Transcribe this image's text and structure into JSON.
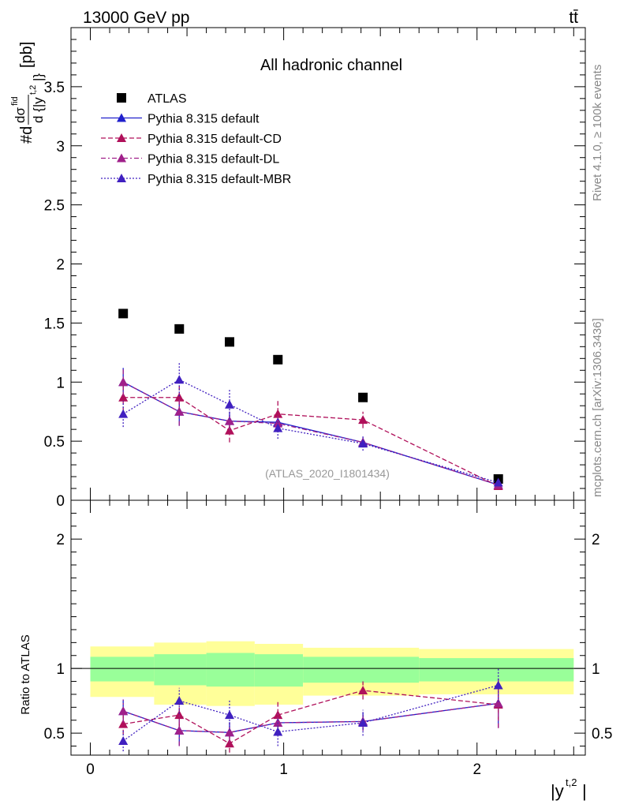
{
  "header": {
    "energy_label": "13000 GeV pp",
    "process_label": "tt̄"
  },
  "side": {
    "rivet_label": "Rivet 4.1.0, ≥ 100k events",
    "mcplots_label": "mcplots.cern.ch [arXiv:1306.3436]"
  },
  "chart_data": [
    {
      "type": "scatter",
      "panel": "main",
      "title": "All hadronic channel",
      "ylabel": "#d dσ^fid / d {|y^t,2|} [pb]",
      "xlabel": "|y^t,2|",
      "xlim": [
        -0.1,
        2.56
      ],
      "ylim": [
        0,
        4.0
      ],
      "yticks": [
        "0",
        "0.5",
        "1",
        "1.5",
        "2",
        "2.5",
        "3",
        "3.5"
      ],
      "analysis_label": "(ATLAS_2020_I1801434)",
      "legend_position": "top-left",
      "x": [
        0.17,
        0.46,
        0.72,
        0.97,
        1.41,
        2.11
      ],
      "series": [
        {
          "name": "ATLAS",
          "style": "data",
          "color": "#000000",
          "values": [
            1.58,
            1.45,
            1.34,
            1.19,
            0.87,
            0.18
          ]
        },
        {
          "name": "Pythia 8.315 default",
          "style": "solid",
          "color": "#2020cc",
          "values": [
            1.0,
            0.75,
            0.67,
            0.66,
            0.49,
            0.13
          ],
          "errors": [
            0.12,
            0.12,
            0.08,
            0.07,
            0.04,
            0.03
          ]
        },
        {
          "name": "Pythia 8.315 default-CD",
          "style": "dashed",
          "color": "#b0105a",
          "values": [
            0.87,
            0.87,
            0.59,
            0.73,
            0.68,
            0.12
          ],
          "errors": [
            0.12,
            0.12,
            0.1,
            0.11,
            0.07,
            0.03
          ]
        },
        {
          "name": "Pythia 8.315 default-DL",
          "style": "dashdot",
          "color": "#a0208a",
          "values": [
            1.0,
            0.75,
            0.67,
            0.65,
            0.49,
            0.13
          ],
          "errors": [
            0.12,
            0.12,
            0.08,
            0.07,
            0.04,
            0.03
          ]
        },
        {
          "name": "Pythia 8.315 default-MBR",
          "style": "dotted",
          "color": "#4020c0",
          "values": [
            0.73,
            1.02,
            0.81,
            0.61,
            0.48,
            0.15
          ],
          "errors": [
            0.11,
            0.14,
            0.13,
            0.09,
            0.06,
            0.03
          ]
        }
      ]
    },
    {
      "type": "scatter",
      "panel": "ratio",
      "ylabel": "Ratio to ATLAS",
      "xlabel": "|y^t,2|",
      "xlim": [
        -0.1,
        2.56
      ],
      "ylim": [
        0.33,
        2.3
      ],
      "yticks": [
        "0.5",
        "1",
        "2"
      ],
      "xticks": [
        "0",
        "1",
        "2"
      ],
      "bins": [
        0.0,
        0.33,
        0.6,
        0.85,
        1.1,
        1.7,
        2.5
      ],
      "band_inner": [
        [
          0.9,
          1.09
        ],
        [
          0.87,
          1.11
        ],
        [
          0.86,
          1.12
        ],
        [
          0.86,
          1.11
        ],
        [
          0.89,
          1.09
        ],
        [
          0.9,
          1.08
        ]
      ],
      "band_outer": [
        [
          0.78,
          1.17
        ],
        [
          0.72,
          1.2
        ],
        [
          0.71,
          1.21
        ],
        [
          0.72,
          1.19
        ],
        [
          0.79,
          1.16
        ],
        [
          0.8,
          1.15
        ]
      ],
      "x": [
        0.17,
        0.46,
        0.72,
        0.97,
        1.41,
        2.11
      ],
      "series": [
        {
          "name": "Pythia 8.315 default",
          "style": "solid",
          "color": "#2020cc",
          "values": [
            0.67,
            0.52,
            0.505,
            0.58,
            0.59,
            0.73
          ],
          "errors": [
            0.09,
            0.12,
            0.08,
            0.08,
            0.07,
            0.19
          ]
        },
        {
          "name": "Pythia 8.315 default-CD",
          "style": "dashed",
          "color": "#b0105a",
          "values": [
            0.57,
            0.64,
            0.42,
            0.64,
            0.83,
            0.72
          ],
          "errors": [
            0.08,
            0.09,
            0.07,
            0.1,
            0.07,
            0.18
          ]
        },
        {
          "name": "Pythia 8.315 default-DL",
          "style": "dashdot",
          "color": "#a0208a",
          "values": [
            0.67,
            0.52,
            0.505,
            0.58,
            0.59,
            0.73
          ],
          "errors": [
            0.09,
            0.12,
            0.08,
            0.08,
            0.07,
            0.19
          ]
        },
        {
          "name": "Pythia 8.315 default-MBR",
          "style": "dotted",
          "color": "#4020c0",
          "values": [
            0.44,
            0.75,
            0.64,
            0.51,
            0.58,
            0.87
          ],
          "errors": [
            0.08,
            0.1,
            0.12,
            0.11,
            0.1,
            0.13
          ]
        }
      ]
    }
  ]
}
